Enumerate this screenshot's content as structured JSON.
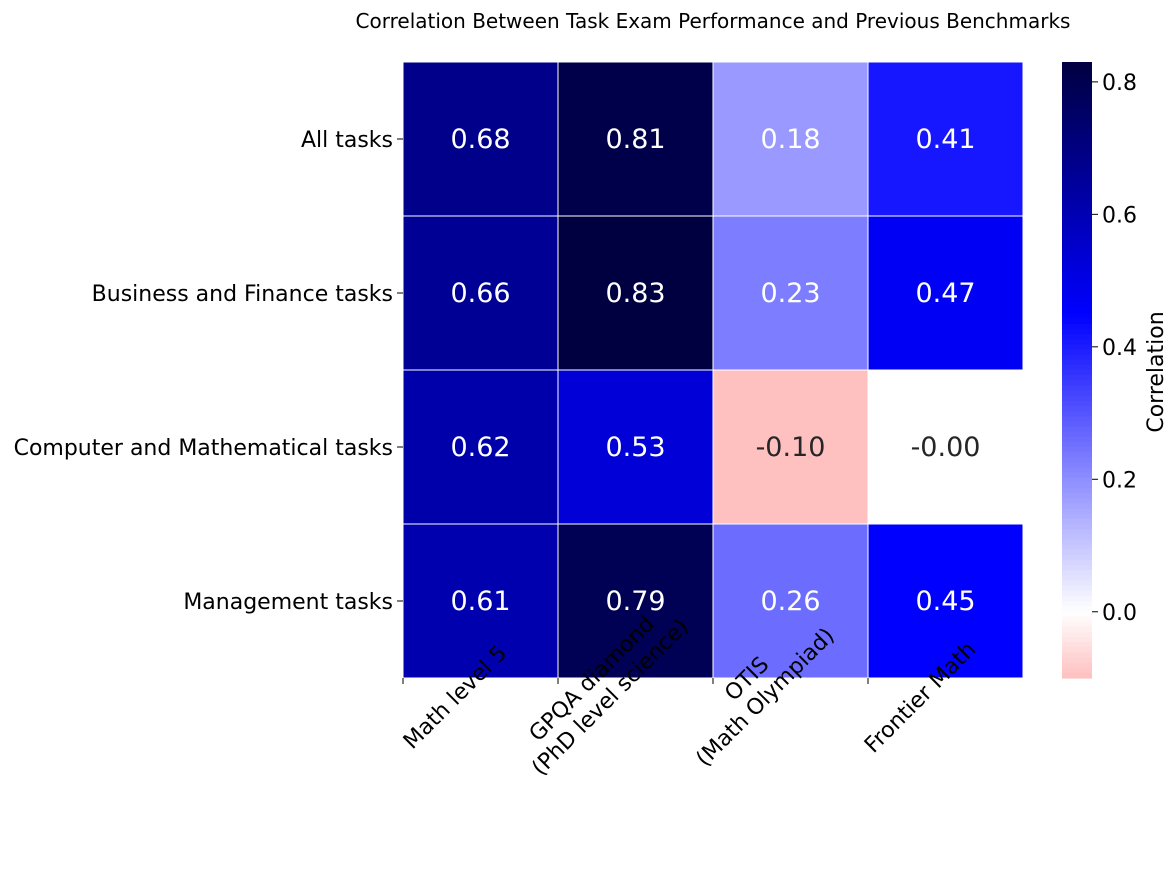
{
  "chart_data": {
    "type": "heatmap",
    "title": "Correlation Between Task Exam Performance and Previous Benchmarks",
    "rows": [
      "All tasks",
      "Business and Finance tasks",
      "Computer and Mathematical tasks",
      "Management tasks"
    ],
    "columns": [
      "Math level 5",
      "GPQA diamond\n(PhD level science)",
      "OTIS\n(Math Olympiad)",
      "Frontier Math"
    ],
    "values": [
      [
        0.68,
        0.81,
        0.18,
        0.41
      ],
      [
        0.66,
        0.83,
        0.23,
        0.47
      ],
      [
        0.62,
        0.53,
        -0.1,
        -0.0
      ],
      [
        0.61,
        0.79,
        0.26,
        0.45
      ]
    ],
    "cell_labels": [
      [
        "0.68",
        "0.81",
        "0.18",
        "0.41"
      ],
      [
        "0.66",
        "0.83",
        "0.23",
        "0.47"
      ],
      [
        "0.62",
        "0.53",
        "-0.10",
        "-0.00"
      ],
      [
        "0.61",
        "0.79",
        "0.26",
        "0.45"
      ]
    ],
    "colorbar": {
      "label": "Correlation",
      "range": [
        -0.1,
        0.83
      ],
      "ticks": [
        0.0,
        0.2,
        0.4,
        0.6,
        0.8
      ],
      "tick_labels": [
        "0.0",
        "0.2",
        "0.4",
        "0.6",
        "0.8"
      ],
      "colors": {
        "low": "#ffc0c0",
        "center": "#ffffff",
        "mid": "#0000ff",
        "high": "#000040"
      }
    }
  }
}
